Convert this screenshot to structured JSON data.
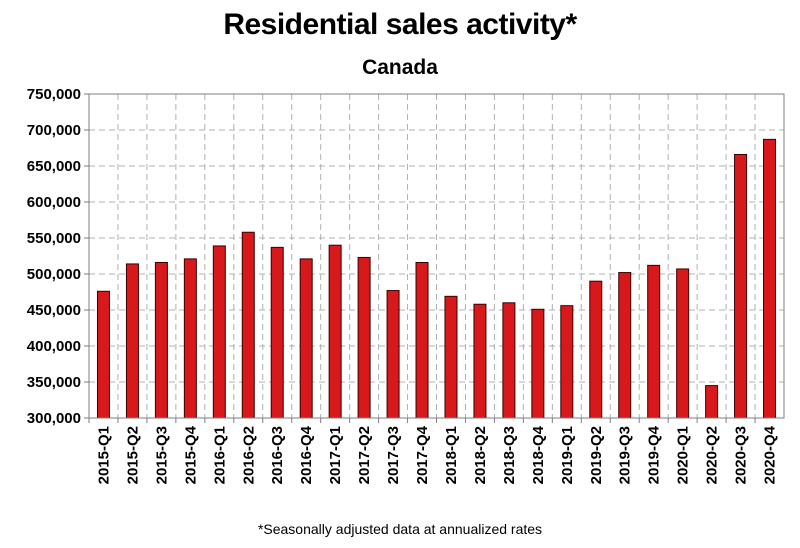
{
  "chart_data": {
    "type": "bar",
    "title": "Residential sales activity*",
    "subtitle": "Canada",
    "footnote": "*Seasonally adjusted data at annualized rates",
    "categories": [
      "2015-Q1",
      "2015-Q2",
      "2015-Q3",
      "2015-Q4",
      "2016-Q1",
      "2016-Q2",
      "2016-Q3",
      "2016-Q4",
      "2017-Q1",
      "2017-Q2",
      "2017-Q3",
      "2017-Q4",
      "2018-Q1",
      "2018-Q2",
      "2018-Q3",
      "2018-Q4",
      "2019-Q1",
      "2019-Q2",
      "2019-Q3",
      "2019-Q4",
      "2020-Q1",
      "2020-Q2",
      "2020-Q3",
      "2020-Q4"
    ],
    "values": [
      476000,
      514000,
      516000,
      521000,
      539000,
      558000,
      537000,
      521000,
      540000,
      523000,
      477000,
      516000,
      469000,
      458000,
      460000,
      451000,
      456000,
      490000,
      502000,
      512000,
      507000,
      345000,
      666000,
      687000
    ],
    "ylim": [
      300000,
      750000
    ],
    "yticks": [
      300000,
      350000,
      400000,
      450000,
      500000,
      550000,
      600000,
      650000,
      700000,
      750000
    ],
    "ytick_labels": [
      "300,000",
      "350,000",
      "400,000",
      "450,000",
      "500,000",
      "550,000",
      "600,000",
      "650,000",
      "700,000",
      "750,000"
    ],
    "grid": true,
    "bar_color": "#d7191c",
    "grid_color": "#b0b0b0"
  }
}
